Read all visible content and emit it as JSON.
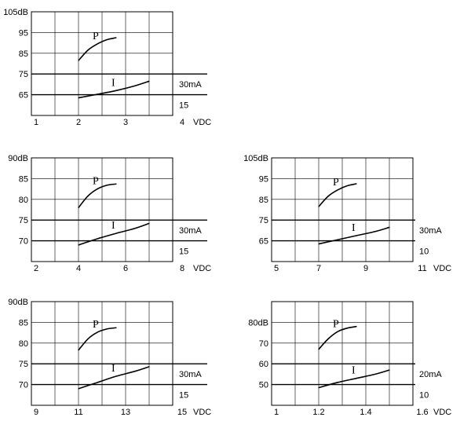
{
  "chart_data": [
    {
      "type": "line",
      "xlim": [
        1,
        4
      ],
      "x_ticks": [
        {
          "value": 1,
          "label": "1"
        },
        {
          "value": 2,
          "label": "2"
        },
        {
          "value": 3,
          "label": "3"
        },
        {
          "value": 4,
          "label": "4"
        }
      ],
      "x_unit": "VDC",
      "y_ticks": [
        {
          "value": 105,
          "label": "105dB"
        },
        {
          "value": 95,
          "label": "95"
        },
        {
          "value": 85,
          "label": "85"
        },
        {
          "value": 75,
          "label": "75"
        },
        {
          "value": 65,
          "label": "65"
        }
      ],
      "right_labels": [
        {
          "value": 75,
          "label": "30mA"
        },
        {
          "value": 65,
          "label": "15"
        }
      ],
      "ylim": [
        55,
        105
      ],
      "grid": true,
      "series": [
        {
          "name": "P",
          "x": [
            2.0,
            2.2,
            2.4,
            2.6,
            2.8
          ],
          "y": [
            81.5,
            86.5,
            89.5,
            91.5,
            92.5
          ]
        },
        {
          "name": "I",
          "x": [
            2.0,
            2.4,
            2.8,
            3.2,
            3.5
          ],
          "y": [
            63.5,
            65.2,
            67.0,
            69.3,
            71.5
          ]
        }
      ]
    },
    {
      "type": "line",
      "xlim": [
        2,
        8
      ],
      "x_ticks": [
        {
          "value": 2,
          "label": "2"
        },
        {
          "value": 4,
          "label": "4"
        },
        {
          "value": 6,
          "label": "6"
        },
        {
          "value": 8,
          "label": "8"
        }
      ],
      "x_unit": "VDC",
      "y_ticks": [
        {
          "value": 90,
          "label": "90dB"
        },
        {
          "value": 85,
          "label": "85"
        },
        {
          "value": 80,
          "label": "80"
        },
        {
          "value": 75,
          "label": "75"
        },
        {
          "value": 70,
          "label": "70"
        }
      ],
      "right_labels": [
        {
          "value": 75,
          "label": "30mA"
        },
        {
          "value": 70,
          "label": "15"
        }
      ],
      "ylim": [
        65,
        90
      ],
      "grid": true,
      "series": [
        {
          "name": "P",
          "x": [
            4.0,
            4.4,
            4.8,
            5.2,
            5.6
          ],
          "y": [
            78.0,
            80.8,
            82.5,
            83.4,
            83.7
          ]
        },
        {
          "name": "I",
          "x": [
            4.0,
            4.8,
            5.6,
            6.4,
            7.0
          ],
          "y": [
            69.0,
            70.5,
            71.8,
            73.0,
            74.2
          ]
        }
      ]
    },
    {
      "type": "line",
      "xlim": [
        5,
        11
      ],
      "x_ticks": [
        {
          "value": 5,
          "label": "5"
        },
        {
          "value": 7,
          "label": "7"
        },
        {
          "value": 9,
          "label": "9"
        },
        {
          "value": 11,
          "label": "11"
        }
      ],
      "x_unit": "VDC",
      "y_ticks": [
        {
          "value": 105,
          "label": "105dB"
        },
        {
          "value": 95,
          "label": "95"
        },
        {
          "value": 85,
          "label": "85"
        },
        {
          "value": 75,
          "label": "75"
        },
        {
          "value": 65,
          "label": "65"
        }
      ],
      "right_labels": [
        {
          "value": 75,
          "label": "30mA"
        },
        {
          "value": 65,
          "label": "10"
        }
      ],
      "ylim": [
        55,
        105
      ],
      "grid": true,
      "series": [
        {
          "name": "P",
          "x": [
            7.0,
            7.4,
            7.8,
            8.2,
            8.6
          ],
          "y": [
            81.5,
            86.5,
            89.5,
            91.5,
            92.5
          ]
        },
        {
          "name": "I",
          "x": [
            7.0,
            7.8,
            8.6,
            9.4,
            10.0
          ],
          "y": [
            63.5,
            65.5,
            67.5,
            69.5,
            71.5
          ]
        }
      ]
    },
    {
      "type": "line",
      "xlim": [
        9,
        15
      ],
      "x_ticks": [
        {
          "value": 9,
          "label": "9"
        },
        {
          "value": 11,
          "label": "11"
        },
        {
          "value": 13,
          "label": "13"
        },
        {
          "value": 15,
          "label": "15"
        }
      ],
      "x_unit": "VDC",
      "y_ticks": [
        {
          "value": 90,
          "label": "90dB"
        },
        {
          "value": 85,
          "label": "85"
        },
        {
          "value": 80,
          "label": "80"
        },
        {
          "value": 75,
          "label": "75"
        },
        {
          "value": 70,
          "label": "70"
        }
      ],
      "right_labels": [
        {
          "value": 75,
          "label": "30mA"
        },
        {
          "value": 70,
          "label": "15"
        }
      ],
      "ylim": [
        65,
        90
      ],
      "grid": true,
      "series": [
        {
          "name": "P",
          "x": [
            11.0,
            11.4,
            11.8,
            12.2,
            12.6
          ],
          "y": [
            78.3,
            81.0,
            82.6,
            83.4,
            83.7
          ]
        },
        {
          "name": "I",
          "x": [
            11.0,
            11.8,
            12.6,
            13.4,
            14.0
          ],
          "y": [
            69.0,
            70.5,
            72.0,
            73.2,
            74.3
          ]
        }
      ]
    },
    {
      "type": "line",
      "xlim": [
        1,
        1.6
      ],
      "x_ticks": [
        {
          "value": 1,
          "label": "1"
        },
        {
          "value": 1.2,
          "label": "1.2"
        },
        {
          "value": 1.4,
          "label": "1.4"
        },
        {
          "value": 1.6,
          "label": "1.6"
        }
      ],
      "x_unit": "VDC",
      "y_ticks": [
        {
          "value": 80,
          "label": "80dB"
        },
        {
          "value": 70,
          "label": "70"
        },
        {
          "value": 60,
          "label": "60"
        },
        {
          "value": 50,
          "label": "50"
        }
      ],
      "right_labels": [
        {
          "value": 60,
          "label": "20mA"
        },
        {
          "value": 50,
          "label": "10"
        }
      ],
      "ylim": [
        40,
        90
      ],
      "grid": true,
      "series": [
        {
          "name": "P",
          "x": [
            1.2,
            1.24,
            1.28,
            1.32,
            1.36
          ],
          "y": [
            67.0,
            72.0,
            75.5,
            77.2,
            78.0
          ]
        },
        {
          "name": "I",
          "x": [
            1.2,
            1.28,
            1.36,
            1.44,
            1.5
          ],
          "y": [
            48.5,
            51.0,
            53.0,
            55.0,
            57.0
          ]
        }
      ]
    }
  ]
}
